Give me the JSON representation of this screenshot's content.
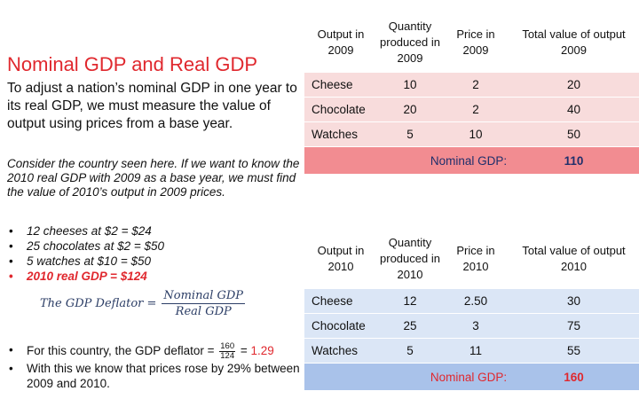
{
  "slide": {
    "title": "Nominal GDP and Real GDP",
    "intro": "To adjust a nation’s nominal GDP in one year to its real GDP, we must measure the value of output using prices from a base year.",
    "consider": "Consider the country seen here. If we want to know the 2010 real GDP with 2009 as a base year, we must find the value of 2010’s output in 2009 prices.",
    "bullets": [
      "12 cheeses at $2 = $24",
      "25 chocolates at $2 = $50",
      "5 watches at $10 = $50",
      "2010 real GDP = $124"
    ],
    "deflator": {
      "lhs": "The GDP Deflator =",
      "numerator": "Nominal GDP",
      "denominator": "Real GDP"
    },
    "bottom": {
      "b1_prefix": "For this country, the GDP deflator =",
      "b1_num": "160",
      "b1_den": "124",
      "b1_eq": "=",
      "b1_value": "1.29",
      "b2": "With this we know that prices rose by 29% between 2009 and 2010."
    }
  },
  "table_2009": {
    "headers": [
      "Output in 2009",
      "Quantity produced in 2009",
      "Price in 2009",
      "Total value of output 2009"
    ],
    "rows": [
      [
        "Cheese",
        "10",
        "2",
        "20"
      ],
      [
        "Chocolate",
        "20",
        "2",
        "40"
      ],
      [
        "Watches",
        "5",
        "10",
        "50"
      ]
    ],
    "total_label": "Nominal GDP:",
    "total_value": "110"
  },
  "table_2010": {
    "headers": [
      "Output in 2010",
      "Quantity produced in 2010",
      "Price in 2010",
      "Total value of output 2010"
    ],
    "rows": [
      [
        "Cheese",
        "12",
        "2.50",
        "30"
      ],
      [
        "Chocolate",
        "25",
        "3",
        "75"
      ],
      [
        "Watches",
        "5",
        "11",
        "55"
      ]
    ],
    "total_label": "Nominal GDP:",
    "total_value": "160"
  },
  "colors": {
    "accent_red": "#e0282e",
    "table1_row": "#f8dcdc",
    "table1_total": "#f28c91",
    "table2_row": "#dbe6f6",
    "table2_total": "#a9c2ea"
  }
}
